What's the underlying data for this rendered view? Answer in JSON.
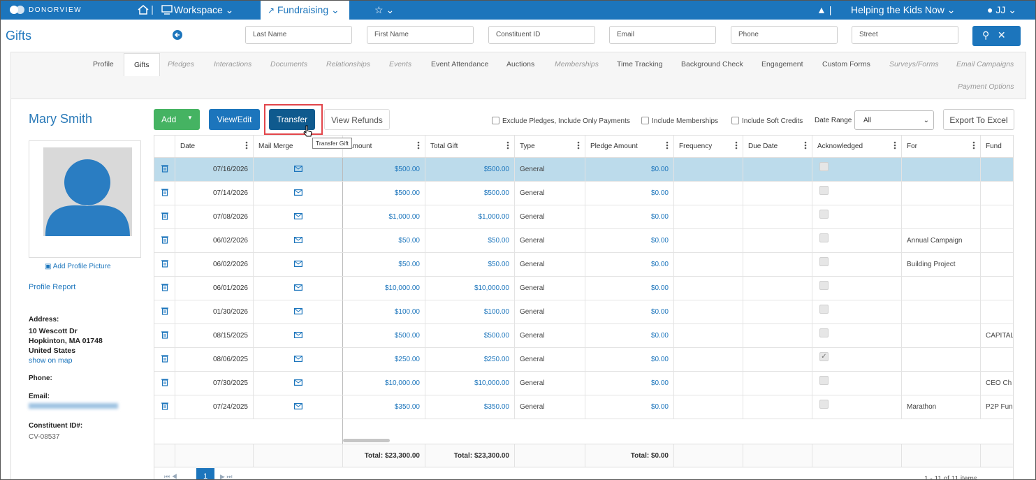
{
  "nav": {
    "brand": "DONORVIEW",
    "workspace": "Workspace",
    "fundraising": "Fundraising",
    "org": "Helping the Kids Now",
    "user": "JJ"
  },
  "header": {
    "title": "Gifts",
    "search_fields": [
      "Last Name",
      "First Name",
      "Constituent ID",
      "Email",
      "Phone",
      "Street"
    ]
  },
  "tabs": [
    {
      "label": "Profile",
      "muted": false
    },
    {
      "label": "Gifts",
      "muted": false,
      "active": true
    },
    {
      "label": "Pledges",
      "muted": true
    },
    {
      "label": "Interactions",
      "muted": true
    },
    {
      "label": "Documents",
      "muted": true
    },
    {
      "label": "Relationships",
      "muted": true
    },
    {
      "label": "Events",
      "muted": true
    },
    {
      "label": "Event Attendance",
      "muted": false
    },
    {
      "label": "Auctions",
      "muted": false
    },
    {
      "label": "Memberships",
      "muted": true
    },
    {
      "label": "Time Tracking",
      "muted": false
    },
    {
      "label": "Background Check",
      "muted": false
    },
    {
      "label": "Engagement",
      "muted": false
    },
    {
      "label": "Custom Forms",
      "muted": false
    },
    {
      "label": "Surveys/Forms",
      "muted": true
    },
    {
      "label": "Email Campaigns",
      "muted": true
    },
    {
      "label": "Payment Options",
      "muted": true
    }
  ],
  "profile": {
    "name": "Mary Smith",
    "add_picture": "Add Profile Picture",
    "report": "Profile Report",
    "address_label": "Address:",
    "address": [
      "10 Wescott Dr",
      "Hopkinton, MA 01748",
      "United States"
    ],
    "map_link": "show on map",
    "phone_label": "Phone:",
    "email_label": "Email:",
    "id_label": "Constituent ID#:",
    "id": "CV-08537"
  },
  "toolbar": {
    "add": "Add",
    "view_edit": "View/Edit",
    "transfer": "Transfer",
    "view_refunds": "View Refunds",
    "tooltip": "Transfer Gift",
    "checkboxes": [
      "Exclude Pledges, Include Only Payments",
      "Include Memberships",
      "Include Soft Credits"
    ],
    "date_range_label": "Date Range",
    "date_range": "All",
    "export": "Export To Excel"
  },
  "table": {
    "columns": [
      "Date",
      "Mail Merge",
      "Amount",
      "Total Gift",
      "Type",
      "Pledge Amount",
      "Frequency",
      "Due Date",
      "Acknowledged",
      "For",
      "Fund"
    ],
    "selected_row": 0,
    "rows": [
      {
        "date": "07/16/2026",
        "amount": "$500.00",
        "total_gift": "$500.00",
        "type": "General",
        "pledge_amount": "$0.00",
        "acknowledged": false,
        "for": null,
        "fund": null
      },
      {
        "date": "07/14/2026",
        "amount": "$500.00",
        "total_gift": "$500.00",
        "type": "General",
        "pledge_amount": "$0.00",
        "acknowledged": false,
        "for": null,
        "fund": null
      },
      {
        "date": "07/08/2026",
        "amount": "$1,000.00",
        "total_gift": "$1,000.00",
        "type": "General",
        "pledge_amount": "$0.00",
        "acknowledged": false,
        "for": null,
        "fund": null
      },
      {
        "date": "06/02/2026",
        "amount": "$50.00",
        "total_gift": "$50.00",
        "type": "General",
        "pledge_amount": "$0.00",
        "acknowledged": false,
        "for": "Annual Campaign",
        "fund": null
      },
      {
        "date": "06/02/2026",
        "amount": "$50.00",
        "total_gift": "$50.00",
        "type": "General",
        "pledge_amount": "$0.00",
        "acknowledged": false,
        "for": "Building Project",
        "fund": null
      },
      {
        "date": "06/01/2026",
        "amount": "$10,000.00",
        "total_gift": "$10,000.00",
        "type": "General",
        "pledge_amount": "$0.00",
        "acknowledged": false,
        "for": null,
        "fund": null
      },
      {
        "date": "01/30/2026",
        "amount": "$100.00",
        "total_gift": "$100.00",
        "type": "General",
        "pledge_amount": "$0.00",
        "acknowledged": false,
        "for": null,
        "fund": null
      },
      {
        "date": "08/15/2025",
        "amount": "$500.00",
        "total_gift": "$500.00",
        "type": "General",
        "pledge_amount": "$0.00",
        "acknowledged": false,
        "for": null,
        "fund": "CAPITAL"
      },
      {
        "date": "08/06/2025",
        "amount": "$250.00",
        "total_gift": "$250.00",
        "type": "General",
        "pledge_amount": "$0.00",
        "acknowledged": true,
        "for": null,
        "fund": null
      },
      {
        "date": "07/30/2025",
        "amount": "$10,000.00",
        "total_gift": "$10,000.00",
        "type": "General",
        "pledge_amount": "$0.00",
        "acknowledged": false,
        "for": null,
        "fund": "CEO Ch"
      },
      {
        "date": "07/24/2025",
        "amount": "$350.00",
        "total_gift": "$350.00",
        "type": "General",
        "pledge_amount": "$0.00",
        "acknowledged": false,
        "for": "Marathon",
        "fund": "P2P Fun"
      }
    ],
    "totals": {
      "amount": "Total: $23,300.00",
      "total_gift": "Total: $23,300.00",
      "pledge_amount": "Total: $0.00"
    },
    "pager": {
      "page": "1",
      "summary": "1 - 11 of 11 items"
    }
  }
}
